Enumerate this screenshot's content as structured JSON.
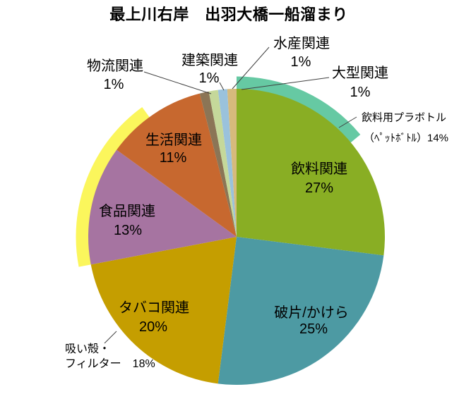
{
  "title": "最上川右岸　出羽大橋一船溜まり",
  "chart_data": {
    "type": "pie",
    "title": "最上川右岸　出羽大橋一船溜まり",
    "unit": "%",
    "start_angle": "12-o'clock, clockwise",
    "legend": "none (direct slice labels)",
    "segments": [
      {
        "label": "飲料関連",
        "value": 27,
        "pct_label": "27%",
        "color": "#89AE24"
      },
      {
        "label": "破片/かけら",
        "value": 25,
        "pct_label": "25%",
        "color": "#4D9AA3"
      },
      {
        "label": "タバコ関連",
        "value": 20,
        "pct_label": "20%",
        "color": "#C59E00"
      },
      {
        "label": "食品関連",
        "value": 13,
        "pct_label": "13%",
        "color": "#A674A1"
      },
      {
        "label": "生活関連",
        "value": 11,
        "pct_label": "11%",
        "color": "#C7682F"
      },
      {
        "label": "物流関連",
        "value": 1,
        "pct_label": "1%",
        "color": "#8B7556"
      },
      {
        "label": "建築関連",
        "value": 1,
        "pct_label": "1%",
        "color": "#C5D89A"
      },
      {
        "label": "水産関連",
        "value": 1,
        "pct_label": "1%",
        "color": "#9AC2DC"
      },
      {
        "label": "大型関連",
        "value": 1,
        "pct_label": "1%",
        "color": "#D6BA7C"
      }
    ],
    "highlight_arcs": [
      {
        "label_line1": "飲料用プラボトル",
        "label_line2": "（ﾍﾟｯﾄﾎﾞﾄﾙ）14%",
        "value": 14,
        "start_percent": 0,
        "color": "#66C9A3"
      },
      {
        "label_line1": "吸い殻・",
        "label_line2": "フィルター　18%",
        "value": 18,
        "start_percent": 72,
        "color": "#FBF65C"
      }
    ]
  }
}
